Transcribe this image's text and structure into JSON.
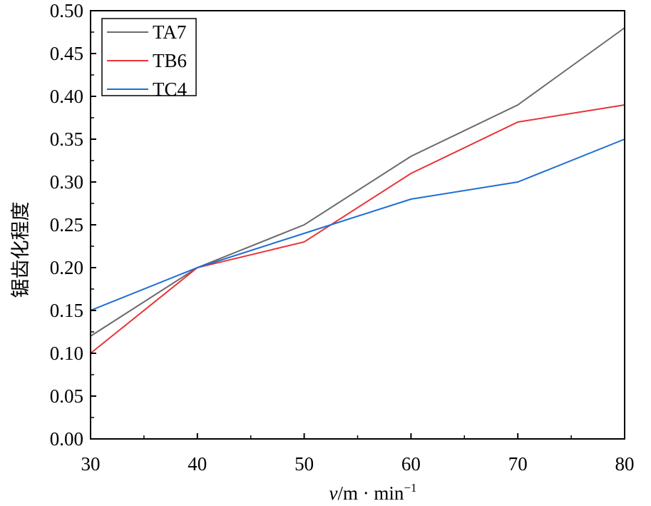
{
  "chart_data": {
    "type": "line",
    "title": "",
    "xlabel_italic": "v",
    "xlabel_rest": "/m · min",
    "xlabel_sup": "−1",
    "ylabel": "锯齿化程度",
    "x": [
      30,
      40,
      50,
      60,
      70,
      80
    ],
    "xlim": [
      30,
      80
    ],
    "ylim": [
      0,
      0.5
    ],
    "xticks": [
      "30",
      "40",
      "50",
      "60",
      "70",
      "80"
    ],
    "yticks": [
      "0.00",
      "0.05",
      "0.10",
      "0.15",
      "0.20",
      "0.25",
      "0.30",
      "0.35",
      "0.40",
      "0.45",
      "0.50"
    ],
    "grid": false,
    "legend_position": "top-left",
    "series": [
      {
        "name": "TA7",
        "color": "#6b6b6b",
        "values": [
          0.12,
          0.2,
          0.25,
          0.33,
          0.39,
          0.48
        ]
      },
      {
        "name": "TB6",
        "color": "#e8343a",
        "values": [
          0.1,
          0.2,
          0.23,
          0.31,
          0.37,
          0.39
        ]
      },
      {
        "name": "TC4",
        "color": "#1f6ed4",
        "values": [
          0.15,
          0.2,
          0.24,
          0.28,
          0.3,
          0.35
        ]
      }
    ]
  }
}
